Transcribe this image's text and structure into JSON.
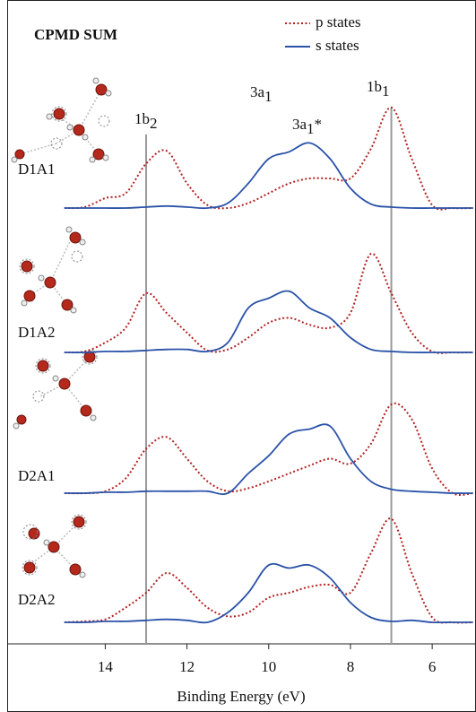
{
  "chart_data": {
    "type": "line",
    "title": "CPMD SUM",
    "xlabel": "Binding Energy (eV)",
    "xlim": [
      16.4,
      4.95
    ],
    "xticks": [
      14,
      12,
      10,
      8,
      6
    ],
    "x": [
      15,
      14.5,
      14,
      13.5,
      13,
      12.5,
      12,
      11.5,
      11,
      10.5,
      10,
      9.5,
      9,
      8.5,
      8,
      7.5,
      7,
      6.5,
      6,
      5.5,
      5
    ],
    "ylim": [
      0,
      1.4
    ],
    "vlines": [
      13,
      7
    ],
    "annotations": [
      {
        "base": "1b",
        "sub": "2",
        "suffix": ""
      },
      {
        "base": "3a",
        "sub": "1",
        "suffix": ""
      },
      {
        "base": "3a",
        "sub": "1",
        "suffix": "*"
      },
      {
        "base": "1b",
        "sub": "1",
        "suffix": ""
      }
    ],
    "legend": "top-right",
    "panels": [
      {
        "label": "D1A1",
        "series": [
          {
            "name": "p states",
            "color": "#b22222",
            "linestyle": "dotted",
            "values": [
              0,
              0.01,
              0.1,
              0.15,
              0.45,
              0.58,
              0.25,
              0.03,
              0,
              0.05,
              0.15,
              0.25,
              0.3,
              0.3,
              0.3,
              0.6,
              1.02,
              0.5,
              0.03,
              0,
              0
            ]
          },
          {
            "name": "s states",
            "color": "#2a52a8",
            "linestyle": "solid",
            "values": [
              0,
              0,
              0,
              0,
              0.01,
              0.02,
              0.01,
              0,
              0.05,
              0.25,
              0.5,
              0.57,
              0.66,
              0.5,
              0.2,
              0.04,
              0.01,
              0,
              0,
              0,
              0
            ]
          }
        ]
      },
      {
        "label": "D1A2",
        "series": [
          {
            "name": "p states",
            "color": "#b22222",
            "linestyle": "dotted",
            "values": [
              0,
              0.01,
              0.1,
              0.25,
              0.6,
              0.4,
              0.2,
              0.02,
              0.03,
              0.15,
              0.3,
              0.35,
              0.28,
              0.25,
              0.4,
              1.0,
              0.6,
              0.2,
              0.01,
              0,
              0
            ]
          },
          {
            "name": "s states",
            "color": "#2a52a8",
            "linestyle": "solid",
            "values": [
              0,
              0,
              0.01,
              0.01,
              0.02,
              0.03,
              0.03,
              0.01,
              0.1,
              0.45,
              0.55,
              0.62,
              0.45,
              0.35,
              0.15,
              0.03,
              0.01,
              0,
              0,
              0,
              0
            ]
          }
        ]
      },
      {
        "label": "D2A1",
        "series": [
          {
            "name": "p states",
            "color": "#b22222",
            "linestyle": "dotted",
            "values": [
              0,
              0,
              0.02,
              0.15,
              0.45,
              0.57,
              0.35,
              0.12,
              0.02,
              0.05,
              0.12,
              0.2,
              0.28,
              0.35,
              0.3,
              0.5,
              0.9,
              0.75,
              0.25,
              0,
              0
            ]
          },
          {
            "name": "s states",
            "color": "#2a52a8",
            "linestyle": "solid",
            "values": [
              0,
              0,
              0.01,
              0.01,
              0.02,
              0.02,
              0.02,
              0.02,
              0,
              0.2,
              0.38,
              0.6,
              0.65,
              0.68,
              0.35,
              0.12,
              0.04,
              0.02,
              0.01,
              0,
              0
            ]
          }
        ]
      },
      {
        "label": "D2A2",
        "series": [
          {
            "name": "p states",
            "color": "#b22222",
            "linestyle": "dotted",
            "values": [
              0,
              0.01,
              0.03,
              0.15,
              0.3,
              0.5,
              0.35,
              0.15,
              0.06,
              0.1,
              0.25,
              0.3,
              0.36,
              0.38,
              0.3,
              0.7,
              1.05,
              0.5,
              0.05,
              0,
              0
            ]
          },
          {
            "name": "s states",
            "color": "#2a52a8",
            "linestyle": "solid",
            "values": [
              0,
              0,
              0.01,
              0.01,
              0.02,
              0.03,
              0.02,
              0,
              0.1,
              0.3,
              0.58,
              0.55,
              0.58,
              0.45,
              0.2,
              0.05,
              0.01,
              0.02,
              0,
              0,
              0
            ]
          }
        ]
      }
    ]
  }
}
